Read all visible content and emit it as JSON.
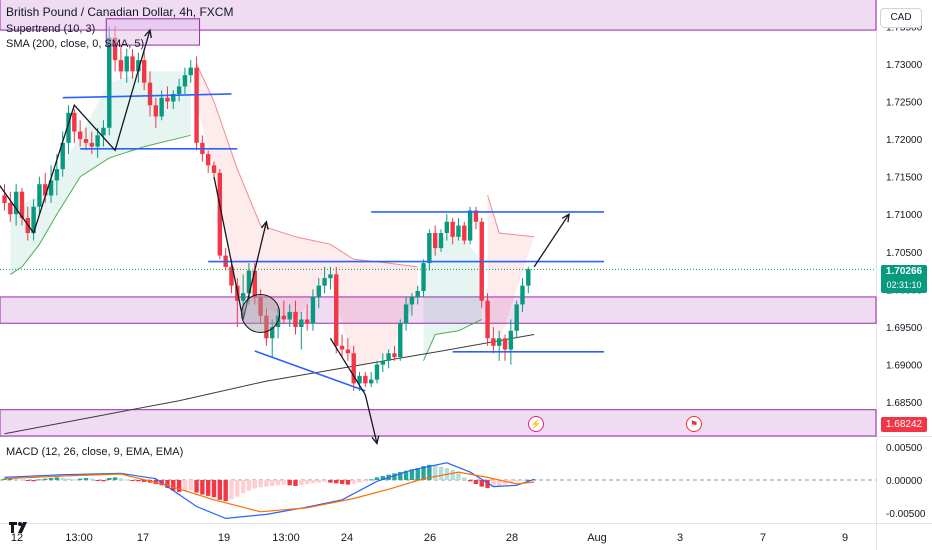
{
  "header": {
    "title": "British Pound / Canadian Dollar, 4h, FXCM",
    "indicator_supertrend": "Supertrend (10, 3)",
    "indicator_sma": "SMA (200, close, 0, SMA, 5)",
    "indicator_macd": "MACD (12, 26, close, 9, EMA, EMA)"
  },
  "currency": "CAD",
  "price_tags": {
    "current_price": "1.70266",
    "countdown": "02:31:10",
    "low_zone_price": "1.68242"
  },
  "icons": {
    "event": "bolt-icon",
    "flag": "flag-icon"
  },
  "colors": {
    "bull": "#089981",
    "bear": "#f23645",
    "zone_fill": "#e1bee7",
    "zone_border": "#9c27b0",
    "trendline": "#2962ff",
    "sma": "#3b3b3b",
    "macd_line": "#2962ff",
    "signal_line": "#ff6d00"
  },
  "chart_data": [
    {
      "type": "candlestick",
      "title": "British Pound / Canadian Dollar, 4h, FXCM",
      "x_tick_labels": [
        "12",
        "13:00",
        "17",
        "19",
        "13:00",
        "24",
        "26",
        "28",
        "Aug",
        "3",
        "7",
        "9"
      ],
      "y_tick_labels": [
        "1.73500",
        "1.73000",
        "1.72500",
        "1.72000",
        "1.71500",
        "1.71000",
        "1.70500",
        "1.70000",
        "1.69500",
        "1.69000",
        "1.68500"
      ],
      "ylim": [
        1.6805,
        1.7385
      ],
      "candles": [
        {
          "o": 1.7125,
          "h": 1.714,
          "l": 1.7105,
          "c": 1.7115
        },
        {
          "o": 1.7115,
          "h": 1.713,
          "l": 1.709,
          "c": 1.71
        },
        {
          "o": 1.71,
          "h": 1.714,
          "l": 1.7085,
          "c": 1.713
        },
        {
          "o": 1.713,
          "h": 1.7135,
          "l": 1.7085,
          "c": 1.7095
        },
        {
          "o": 1.7095,
          "h": 1.711,
          "l": 1.7065,
          "c": 1.7075
        },
        {
          "o": 1.7075,
          "h": 1.712,
          "l": 1.7065,
          "c": 1.711
        },
        {
          "o": 1.711,
          "h": 1.715,
          "l": 1.71,
          "c": 1.714
        },
        {
          "o": 1.714,
          "h": 1.7155,
          "l": 1.7115,
          "c": 1.7125
        },
        {
          "o": 1.7125,
          "h": 1.7165,
          "l": 1.7115,
          "c": 1.7145
        },
        {
          "o": 1.7145,
          "h": 1.718,
          "l": 1.7125,
          "c": 1.716
        },
        {
          "o": 1.716,
          "h": 1.721,
          "l": 1.715,
          "c": 1.7195
        },
        {
          "o": 1.7195,
          "h": 1.7245,
          "l": 1.718,
          "c": 1.7235
        },
        {
          "o": 1.7235,
          "h": 1.724,
          "l": 1.7195,
          "c": 1.721
        },
        {
          "o": 1.721,
          "h": 1.7225,
          "l": 1.719,
          "c": 1.72
        },
        {
          "o": 1.72,
          "h": 1.7215,
          "l": 1.7185,
          "c": 1.7195
        },
        {
          "o": 1.7195,
          "h": 1.721,
          "l": 1.718,
          "c": 1.719
        },
        {
          "o": 1.719,
          "h": 1.7215,
          "l": 1.7175,
          "c": 1.7205
        },
        {
          "o": 1.7205,
          "h": 1.7225,
          "l": 1.719,
          "c": 1.7215
        },
        {
          "o": 1.7215,
          "h": 1.735,
          "l": 1.7205,
          "c": 1.7335
        },
        {
          "o": 1.7335,
          "h": 1.735,
          "l": 1.729,
          "c": 1.7305
        },
        {
          "o": 1.7305,
          "h": 1.7325,
          "l": 1.728,
          "c": 1.729
        },
        {
          "o": 1.729,
          "h": 1.732,
          "l": 1.7275,
          "c": 1.731
        },
        {
          "o": 1.731,
          "h": 1.732,
          "l": 1.728,
          "c": 1.729
        },
        {
          "o": 1.729,
          "h": 1.7315,
          "l": 1.7275,
          "c": 1.7305
        },
        {
          "o": 1.7305,
          "h": 1.732,
          "l": 1.7265,
          "c": 1.7275
        },
        {
          "o": 1.7275,
          "h": 1.729,
          "l": 1.723,
          "c": 1.7245
        },
        {
          "o": 1.7245,
          "h": 1.7255,
          "l": 1.7215,
          "c": 1.723
        },
        {
          "o": 1.723,
          "h": 1.7265,
          "l": 1.7225,
          "c": 1.7255
        },
        {
          "o": 1.7255,
          "h": 1.727,
          "l": 1.724,
          "c": 1.725
        },
        {
          "o": 1.725,
          "h": 1.7265,
          "l": 1.724,
          "c": 1.726
        },
        {
          "o": 1.726,
          "h": 1.728,
          "l": 1.725,
          "c": 1.727
        },
        {
          "o": 1.727,
          "h": 1.7295,
          "l": 1.726,
          "c": 1.7285
        },
        {
          "o": 1.7285,
          "h": 1.7305,
          "l": 1.7275,
          "c": 1.7295
        },
        {
          "o": 1.7295,
          "h": 1.731,
          "l": 1.7185,
          "c": 1.7195
        },
        {
          "o": 1.7195,
          "h": 1.7205,
          "l": 1.717,
          "c": 1.718
        },
        {
          "o": 1.718,
          "h": 1.7185,
          "l": 1.7155,
          "c": 1.7165
        },
        {
          "o": 1.7165,
          "h": 1.717,
          "l": 1.715,
          "c": 1.7155
        },
        {
          "o": 1.7155,
          "h": 1.716,
          "l": 1.704,
          "c": 1.7045
        },
        {
          "o": 1.7045,
          "h": 1.7055,
          "l": 1.7025,
          "c": 1.703
        },
        {
          "o": 1.703,
          "h": 1.704,
          "l": 1.6995,
          "c": 1.7005
        },
        {
          "o": 1.7005,
          "h": 1.7015,
          "l": 1.695,
          "c": 1.6985
        },
        {
          "o": 1.6985,
          "h": 1.702,
          "l": 1.6965,
          "c": 1.6995
        },
        {
          "o": 1.6995,
          "h": 1.7035,
          "l": 1.698,
          "c": 1.7025
        },
        {
          "o": 1.7025,
          "h": 1.7035,
          "l": 1.698,
          "c": 1.699
        },
        {
          "o": 1.699,
          "h": 1.7,
          "l": 1.6955,
          "c": 1.6965
        },
        {
          "o": 1.6965,
          "h": 1.6975,
          "l": 1.6925,
          "c": 1.6935
        },
        {
          "o": 1.6935,
          "h": 1.696,
          "l": 1.691,
          "c": 1.695
        },
        {
          "o": 1.695,
          "h": 1.6975,
          "l": 1.6935,
          "c": 1.6965
        },
        {
          "o": 1.6965,
          "h": 1.6985,
          "l": 1.6955,
          "c": 1.696
        },
        {
          "o": 1.696,
          "h": 1.698,
          "l": 1.695,
          "c": 1.697
        },
        {
          "o": 1.697,
          "h": 1.6985,
          "l": 1.694,
          "c": 1.695
        },
        {
          "o": 1.695,
          "h": 1.697,
          "l": 1.692,
          "c": 1.696
        },
        {
          "o": 1.696,
          "h": 1.698,
          "l": 1.6945,
          "c": 1.6955
        },
        {
          "o": 1.6955,
          "h": 1.7,
          "l": 1.6945,
          "c": 1.699
        },
        {
          "o": 1.699,
          "h": 1.7015,
          "l": 1.6975,
          "c": 1.7005
        },
        {
          "o": 1.7005,
          "h": 1.703,
          "l": 1.6995,
          "c": 1.7015
        },
        {
          "o": 1.7015,
          "h": 1.703,
          "l": 1.7,
          "c": 1.702
        },
        {
          "o": 1.702,
          "h": 1.703,
          "l": 1.6915,
          "c": 1.6925
        },
        {
          "o": 1.6925,
          "h": 1.694,
          "l": 1.691,
          "c": 1.692
        },
        {
          "o": 1.692,
          "h": 1.6935,
          "l": 1.6905,
          "c": 1.6915
        },
        {
          "o": 1.6915,
          "h": 1.6925,
          "l": 1.6865,
          "c": 1.6875
        },
        {
          "o": 1.6875,
          "h": 1.689,
          "l": 1.6865,
          "c": 1.6885
        },
        {
          "o": 1.6885,
          "h": 1.689,
          "l": 1.687,
          "c": 1.6875
        },
        {
          "o": 1.6875,
          "h": 1.689,
          "l": 1.687,
          "c": 1.688
        },
        {
          "o": 1.688,
          "h": 1.6905,
          "l": 1.6875,
          "c": 1.69
        },
        {
          "o": 1.69,
          "h": 1.6915,
          "l": 1.689,
          "c": 1.6905
        },
        {
          "o": 1.6905,
          "h": 1.692,
          "l": 1.6895,
          "c": 1.6915
        },
        {
          "o": 1.6915,
          "h": 1.6925,
          "l": 1.6905,
          "c": 1.691
        },
        {
          "o": 1.691,
          "h": 1.696,
          "l": 1.6905,
          "c": 1.6955
        },
        {
          "o": 1.6955,
          "h": 1.699,
          "l": 1.6945,
          "c": 1.698
        },
        {
          "o": 1.698,
          "h": 1.6995,
          "l": 1.6965,
          "c": 1.699
        },
        {
          "o": 1.699,
          "h": 1.7005,
          "l": 1.698,
          "c": 1.6998
        },
        {
          "o": 1.6998,
          "h": 1.704,
          "l": 1.699,
          "c": 1.7035
        },
        {
          "o": 1.7035,
          "h": 1.708,
          "l": 1.7025,
          "c": 1.7075
        },
        {
          "o": 1.7075,
          "h": 1.7085,
          "l": 1.7045,
          "c": 1.7055
        },
        {
          "o": 1.7055,
          "h": 1.708,
          "l": 1.705,
          "c": 1.7075
        },
        {
          "o": 1.7075,
          "h": 1.71,
          "l": 1.7065,
          "c": 1.709
        },
        {
          "o": 1.709,
          "h": 1.7095,
          "l": 1.706,
          "c": 1.707
        },
        {
          "o": 1.707,
          "h": 1.7095,
          "l": 1.7065,
          "c": 1.7085
        },
        {
          "o": 1.7085,
          "h": 1.709,
          "l": 1.706,
          "c": 1.7065
        },
        {
          "o": 1.7065,
          "h": 1.711,
          "l": 1.706,
          "c": 1.7105
        },
        {
          "o": 1.7105,
          "h": 1.711,
          "l": 1.708,
          "c": 1.709
        },
        {
          "o": 1.709,
          "h": 1.7095,
          "l": 1.6975,
          "c": 1.6985
        },
        {
          "o": 1.6985,
          "h": 1.6995,
          "l": 1.6925,
          "c": 1.6935
        },
        {
          "o": 1.6935,
          "h": 1.695,
          "l": 1.6915,
          "c": 1.6925
        },
        {
          "o": 1.6925,
          "h": 1.6945,
          "l": 1.6905,
          "c": 1.6935
        },
        {
          "o": 1.6935,
          "h": 1.694,
          "l": 1.6905,
          "c": 1.692
        },
        {
          "o": 1.692,
          "h": 1.696,
          "l": 1.69,
          "c": 1.6945
        },
        {
          "o": 1.6945,
          "h": 1.6985,
          "l": 1.6935,
          "c": 1.698
        },
        {
          "o": 1.698,
          "h": 1.7015,
          "l": 1.697,
          "c": 1.7005
        },
        {
          "o": 1.7005,
          "h": 1.703,
          "l": 1.6995,
          "c": 1.7027
        }
      ],
      "sma": [
        {
          "i": 0,
          "v": 1.6808
        },
        {
          "i": 15,
          "v": 1.683
        },
        {
          "i": 30,
          "v": 1.6852
        },
        {
          "i": 45,
          "v": 1.6878
        },
        {
          "i": 60,
          "v": 1.6898
        },
        {
          "i": 75,
          "v": 1.6918
        },
        {
          "i": 91,
          "v": 1.694
        }
      ],
      "supertrend_segments": [
        {
          "dir": "up",
          "points": [
            {
              "i": 1,
              "v": 1.702
            },
            {
              "i": 3,
              "v": 1.703
            },
            {
              "i": 6,
              "v": 1.706
            },
            {
              "i": 9,
              "v": 1.71
            },
            {
              "i": 13,
              "v": 1.715
            },
            {
              "i": 18,
              "v": 1.7175
            },
            {
              "i": 24,
              "v": 1.719
            },
            {
              "i": 32,
              "v": 1.7205
            }
          ]
        },
        {
          "dir": "down",
          "points": [
            {
              "i": 33,
              "v": 1.73
            },
            {
              "i": 36,
              "v": 1.725
            },
            {
              "i": 40,
              "v": 1.716
            },
            {
              "i": 44,
              "v": 1.7085
            },
            {
              "i": 50,
              "v": 1.707
            },
            {
              "i": 56,
              "v": 1.706
            },
            {
              "i": 60,
              "v": 1.704
            },
            {
              "i": 66,
              "v": 1.7035
            },
            {
              "i": 71,
              "v": 1.703
            }
          ]
        },
        {
          "dir": "up",
          "points": [
            {
              "i": 72,
              "v": 1.6905
            },
            {
              "i": 74,
              "v": 1.694
            },
            {
              "i": 78,
              "v": 1.6945
            },
            {
              "i": 82,
              "v": 1.696
            }
          ]
        },
        {
          "dir": "down",
          "points": [
            {
              "i": 83,
              "v": 1.7125
            },
            {
              "i": 85,
              "v": 1.7075
            },
            {
              "i": 91,
              "v": 1.707
            }
          ]
        }
      ],
      "zones": [
        {
          "from": 1.7345,
          "to": 1.74
        },
        {
          "from": 1.6955,
          "to": 1.699
        },
        {
          "from": 1.6805,
          "to": 1.684
        }
      ],
      "highlight_box": {
        "i0": 18,
        "i1": 33,
        "from": 1.7325,
        "to": 1.736
      },
      "trendlines": [
        {
          "i0": 10,
          "v0": 1.7255,
          "i1": 39,
          "v1": 1.726
        },
        {
          "i0": 13,
          "v0": 1.7187,
          "i1": 40,
          "v1": 1.7187
        },
        {
          "i0": 63,
          "v0": 1.7103,
          "i1": 103,
          "v1": 1.7103
        },
        {
          "i0": 35,
          "v0": 1.7037,
          "i1": 103,
          "v1": 1.7037
        },
        {
          "i0": 77,
          "v0": 1.6917,
          "i1": 103,
          "v1": 1.6917
        },
        {
          "i0": 43,
          "v0": 1.6918,
          "i1": 62,
          "v1": 1.6865
        }
      ],
      "arrows": [
        [
          {
            "i": -1,
            "v": 1.714
          },
          {
            "i": 5,
            "v": 1.7075
          },
          {
            "i": 12,
            "v": 1.7245
          },
          {
            "i": 19,
            "v": 1.7185
          },
          {
            "i": 25,
            "v": 1.7345
          }
        ],
        [
          {
            "i": 36,
            "v": 1.715
          },
          {
            "i": 41,
            "v": 1.696
          },
          {
            "i": 45,
            "v": 1.709
          }
        ],
        [
          {
            "i": 56,
            "v": 1.6935
          },
          {
            "i": 62,
            "v": 1.686
          },
          {
            "i": 64,
            "v": 1.6795
          }
        ],
        [
          {
            "i": 91,
            "v": 1.703
          },
          {
            "i": 97,
            "v": 1.71
          }
        ]
      ],
      "circle": {
        "i": 44,
        "v": 1.6968
      }
    },
    {
      "type": "bar",
      "title": "MACD (12, 26, close, 9, EMA, EMA)",
      "y_tick_labels": [
        "0.00500",
        "0.00000",
        "-0.00500"
      ],
      "ylim": [
        -0.0065,
        0.0065
      ],
      "histogram": [
        0.0002,
        0.0003,
        0.0002,
        0.0001,
        -0.0001,
        -0.0002,
        0.0001,
        0.0002,
        0.0003,
        0.0004,
        0.0003,
        0.0002,
        0.0001,
        0.0002,
        0.0003,
        0.0002,
        -0.0001,
        -0.0002,
        0.0003,
        0.0004,
        0.0003,
        0.0001,
        -0.0001,
        -0.0002,
        -0.0003,
        -0.0004,
        -0.0006,
        -0.0008,
        -0.0012,
        -0.0016,
        -0.0018,
        -0.0017,
        -0.0015,
        -0.0019,
        -0.0022,
        -0.0024,
        -0.0026,
        -0.003,
        -0.0032,
        -0.0029,
        -0.0025,
        -0.002,
        -0.0016,
        -0.0013,
        -0.0011,
        -0.001,
        -0.0009,
        -0.0008,
        -0.0007,
        -0.0008,
        -0.0009,
        -0.0008,
        -0.0006,
        -0.0005,
        -0.0004,
        -0.0003,
        -0.0004,
        -0.0005,
        -0.0006,
        -0.0007,
        -0.0006,
        -0.0004,
        -0.0002,
        0.0001,
        0.0004,
        0.0006,
        0.0008,
        0.001,
        0.0012,
        0.0014,
        0.0016,
        0.0018,
        0.0021,
        0.0023,
        0.0022,
        0.002,
        0.0018,
        0.0015,
        0.001,
        0.0004,
        -0.0002,
        -0.0006,
        -0.001,
        -0.0012,
        -0.0011,
        -0.0009,
        -0.0007,
        -0.0004,
        -0.0002,
        -0.0001,
        0.0,
        0.0001
      ],
      "macd_line": [
        {
          "i": 0,
          "v": 0.0004
        },
        {
          "i": 10,
          "v": 0.0008
        },
        {
          "i": 20,
          "v": 0.001
        },
        {
          "i": 26,
          "v": 0.0002
        },
        {
          "i": 33,
          "v": -0.004
        },
        {
          "i": 38,
          "v": -0.0058
        },
        {
          "i": 45,
          "v": -0.0052
        },
        {
          "i": 52,
          "v": -0.0041
        },
        {
          "i": 58,
          "v": -0.003
        },
        {
          "i": 64,
          "v": -0.0002
        },
        {
          "i": 70,
          "v": 0.0015
        },
        {
          "i": 76,
          "v": 0.0026
        },
        {
          "i": 80,
          "v": 0.0012
        },
        {
          "i": 84,
          "v": -0.001
        },
        {
          "i": 88,
          "v": -0.0008
        },
        {
          "i": 91,
          "v": 0.0001
        }
      ],
      "signal_line": [
        {
          "i": 0,
          "v": 0.0002
        },
        {
          "i": 10,
          "v": 0.0006
        },
        {
          "i": 20,
          "v": 0.0009
        },
        {
          "i": 28,
          "v": -0.0008
        },
        {
          "i": 36,
          "v": -0.003
        },
        {
          "i": 44,
          "v": -0.0048
        },
        {
          "i": 52,
          "v": -0.0042
        },
        {
          "i": 60,
          "v": -0.0028
        },
        {
          "i": 66,
          "v": -0.0014
        },
        {
          "i": 72,
          "v": 0.0002
        },
        {
          "i": 78,
          "v": 0.0012
        },
        {
          "i": 83,
          "v": 0.0004
        },
        {
          "i": 88,
          "v": -0.0006
        },
        {
          "i": 91,
          "v": -0.0003
        }
      ]
    }
  ]
}
